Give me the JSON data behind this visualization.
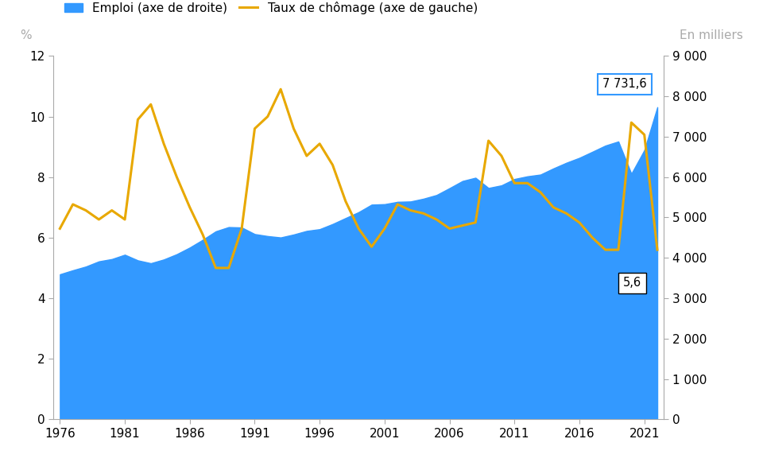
{
  "years": [
    1976,
    1977,
    1978,
    1979,
    1980,
    1981,
    1982,
    1983,
    1984,
    1985,
    1986,
    1987,
    1988,
    1989,
    1990,
    1991,
    1992,
    1993,
    1994,
    1995,
    1996,
    1997,
    1998,
    1999,
    2000,
    2001,
    2002,
    2003,
    2004,
    2005,
    2006,
    2007,
    2008,
    2009,
    2010,
    2011,
    2012,
    2013,
    2014,
    2015,
    2016,
    2017,
    2018,
    2019,
    2020,
    2021,
    2022
  ],
  "unemployment": [
    6.3,
    7.1,
    6.9,
    6.6,
    6.9,
    6.6,
    9.9,
    10.4,
    9.1,
    8.0,
    7.0,
    6.1,
    5.0,
    5.0,
    6.3,
    9.6,
    10.0,
    10.9,
    9.6,
    8.7,
    9.1,
    8.4,
    7.2,
    6.3,
    5.7,
    6.3,
    7.1,
    6.9,
    6.8,
    6.6,
    6.3,
    6.4,
    6.5,
    9.2,
    8.7,
    7.8,
    7.8,
    7.5,
    7.0,
    6.8,
    6.5,
    6.0,
    5.6,
    5.6,
    9.8,
    9.4,
    5.6
  ],
  "employment": [
    3593,
    3693,
    3785,
    3913,
    3970,
    4078,
    3938,
    3867,
    3960,
    4091,
    4256,
    4448,
    4657,
    4762,
    4752,
    4589,
    4539,
    4505,
    4578,
    4667,
    4710,
    4838,
    4986,
    5132,
    5318,
    5329,
    5387,
    5396,
    5465,
    5556,
    5726,
    5903,
    5984,
    5730,
    5795,
    5952,
    6019,
    6062,
    6215,
    6355,
    6477,
    6627,
    6780,
    6882,
    6083,
    6668,
    7731.6
  ],
  "last_unemployment": 5.6,
  "last_employment": 7731.6,
  "ylabel_left": "%",
  "ylabel_right": "En milliers",
  "ylim_left": [
    0,
    12
  ],
  "ylim_right": [
    0,
    9000
  ],
  "yticks_left": [
    0,
    2,
    4,
    6,
    8,
    10,
    12
  ],
  "yticks_right": [
    0,
    1000,
    2000,
    3000,
    4000,
    5000,
    6000,
    7000,
    8000,
    9000
  ],
  "ytick_right_labels": [
    "0",
    "1 000",
    "2 000",
    "3 000",
    "4 000",
    "5 000",
    "6 000",
    "7 000",
    "8 000",
    "9 000"
  ],
  "xticks": [
    1976,
    1981,
    1986,
    1991,
    1996,
    2001,
    2006,
    2011,
    2016,
    2021
  ],
  "xlim": [
    1975.5,
    2022.5
  ],
  "area_color": "#3399FF",
  "line_color": "#E8A800",
  "line_width": 2.2,
  "background_color": "#FFFFFF",
  "legend_employment": "Emploi (axe de droite)",
  "legend_unemployment": "Taux de chômage (axe de gauche)",
  "annotation_employment": "7 731,6",
  "annotation_unemployment": "5,6",
  "tick_fontsize": 11,
  "label_color": "#AAAAAA",
  "spine_color": "#AAAAAA",
  "legend_fontsize": 11
}
